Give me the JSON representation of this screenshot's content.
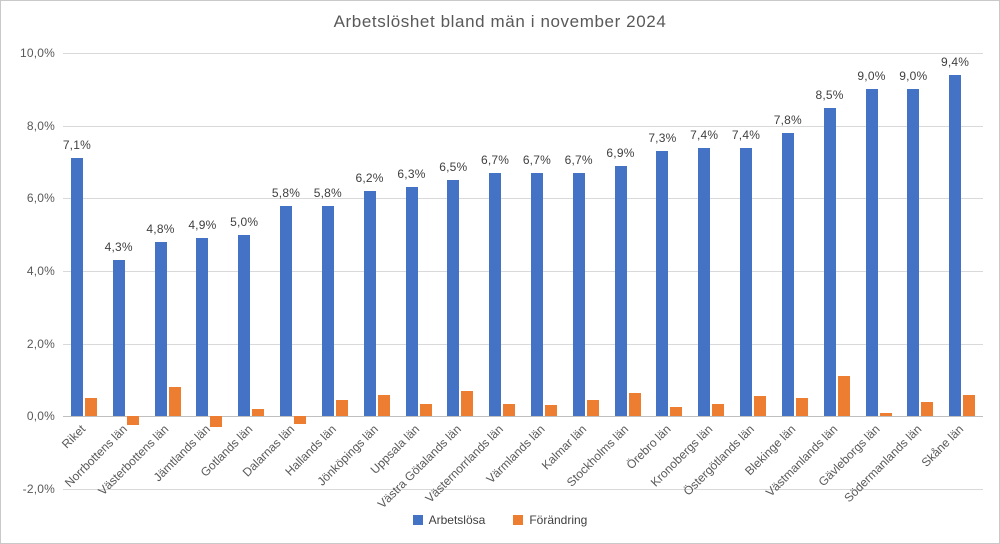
{
  "chart_data": {
    "type": "bar",
    "title": "Arbetslöshet bland män i november 2024",
    "categories": [
      "Riket",
      "Norrbottens län",
      "Västerbottens län",
      "Jämtlands län",
      "Gotlands län",
      "Dalarnas län",
      "Hallands län",
      "Jönköpings län",
      "Uppsala län",
      "Västra Götalands län",
      "Västernorrlands län",
      "Värmlands län",
      "Kalmar län",
      "Stockholms län",
      "Örebro län",
      "Kronobergs län",
      "Östergötlands län",
      "Blekinge län",
      "Västmanlands län",
      "Gävleborgs län",
      "Södermanlands län",
      "Skåne län"
    ],
    "series": [
      {
        "name": "Arbetslösa",
        "color": "#4472C4",
        "values": [
          7.1,
          4.3,
          4.8,
          4.9,
          5.0,
          5.8,
          5.8,
          6.2,
          6.3,
          6.5,
          6.7,
          6.7,
          6.7,
          6.9,
          7.3,
          7.4,
          7.4,
          7.8,
          8.5,
          9.0,
          9.0,
          9.4
        ],
        "data_labels": [
          "7,1%",
          "4,3%",
          "4,8%",
          "4,9%",
          "5,0%",
          "5,8%",
          "5,8%",
          "6,2%",
          "6,3%",
          "6,5%",
          "6,7%",
          "6,7%",
          "6,7%",
          "6,9%",
          "7,3%",
          "7,4%",
          "7,4%",
          "7,8%",
          "8,5%",
          "9,0%",
          "9,0%",
          "9,4%"
        ]
      },
      {
        "name": "Förändring",
        "color": "#ED7D31",
        "values": [
          0.5,
          -0.25,
          0.8,
          -0.3,
          0.2,
          -0.2,
          0.45,
          0.6,
          0.35,
          0.7,
          0.35,
          0.3,
          0.45,
          0.65,
          0.25,
          0.35,
          0.55,
          0.5,
          1.1,
          0.1,
          0.4,
          0.6
        ]
      }
    ],
    "y_axis": {
      "min": -2,
      "max": 10,
      "step": 2,
      "ticks": [
        {
          "label": "10,0%",
          "value": 10
        },
        {
          "label": "8,0%",
          "value": 8
        },
        {
          "label": "6,0%",
          "value": 6
        },
        {
          "label": "4,0%",
          "value": 4
        },
        {
          "label": "2,0%",
          "value": 2
        },
        {
          "label": "0,0%",
          "value": 0
        },
        {
          "label": "-2,0%",
          "value": -2
        }
      ]
    },
    "grid": true,
    "legend_position": "bottom",
    "legend": [
      {
        "label": "Arbetslösa",
        "color": "#4472C4"
      },
      {
        "label": "Förändring",
        "color": "#ED7D31"
      }
    ]
  }
}
